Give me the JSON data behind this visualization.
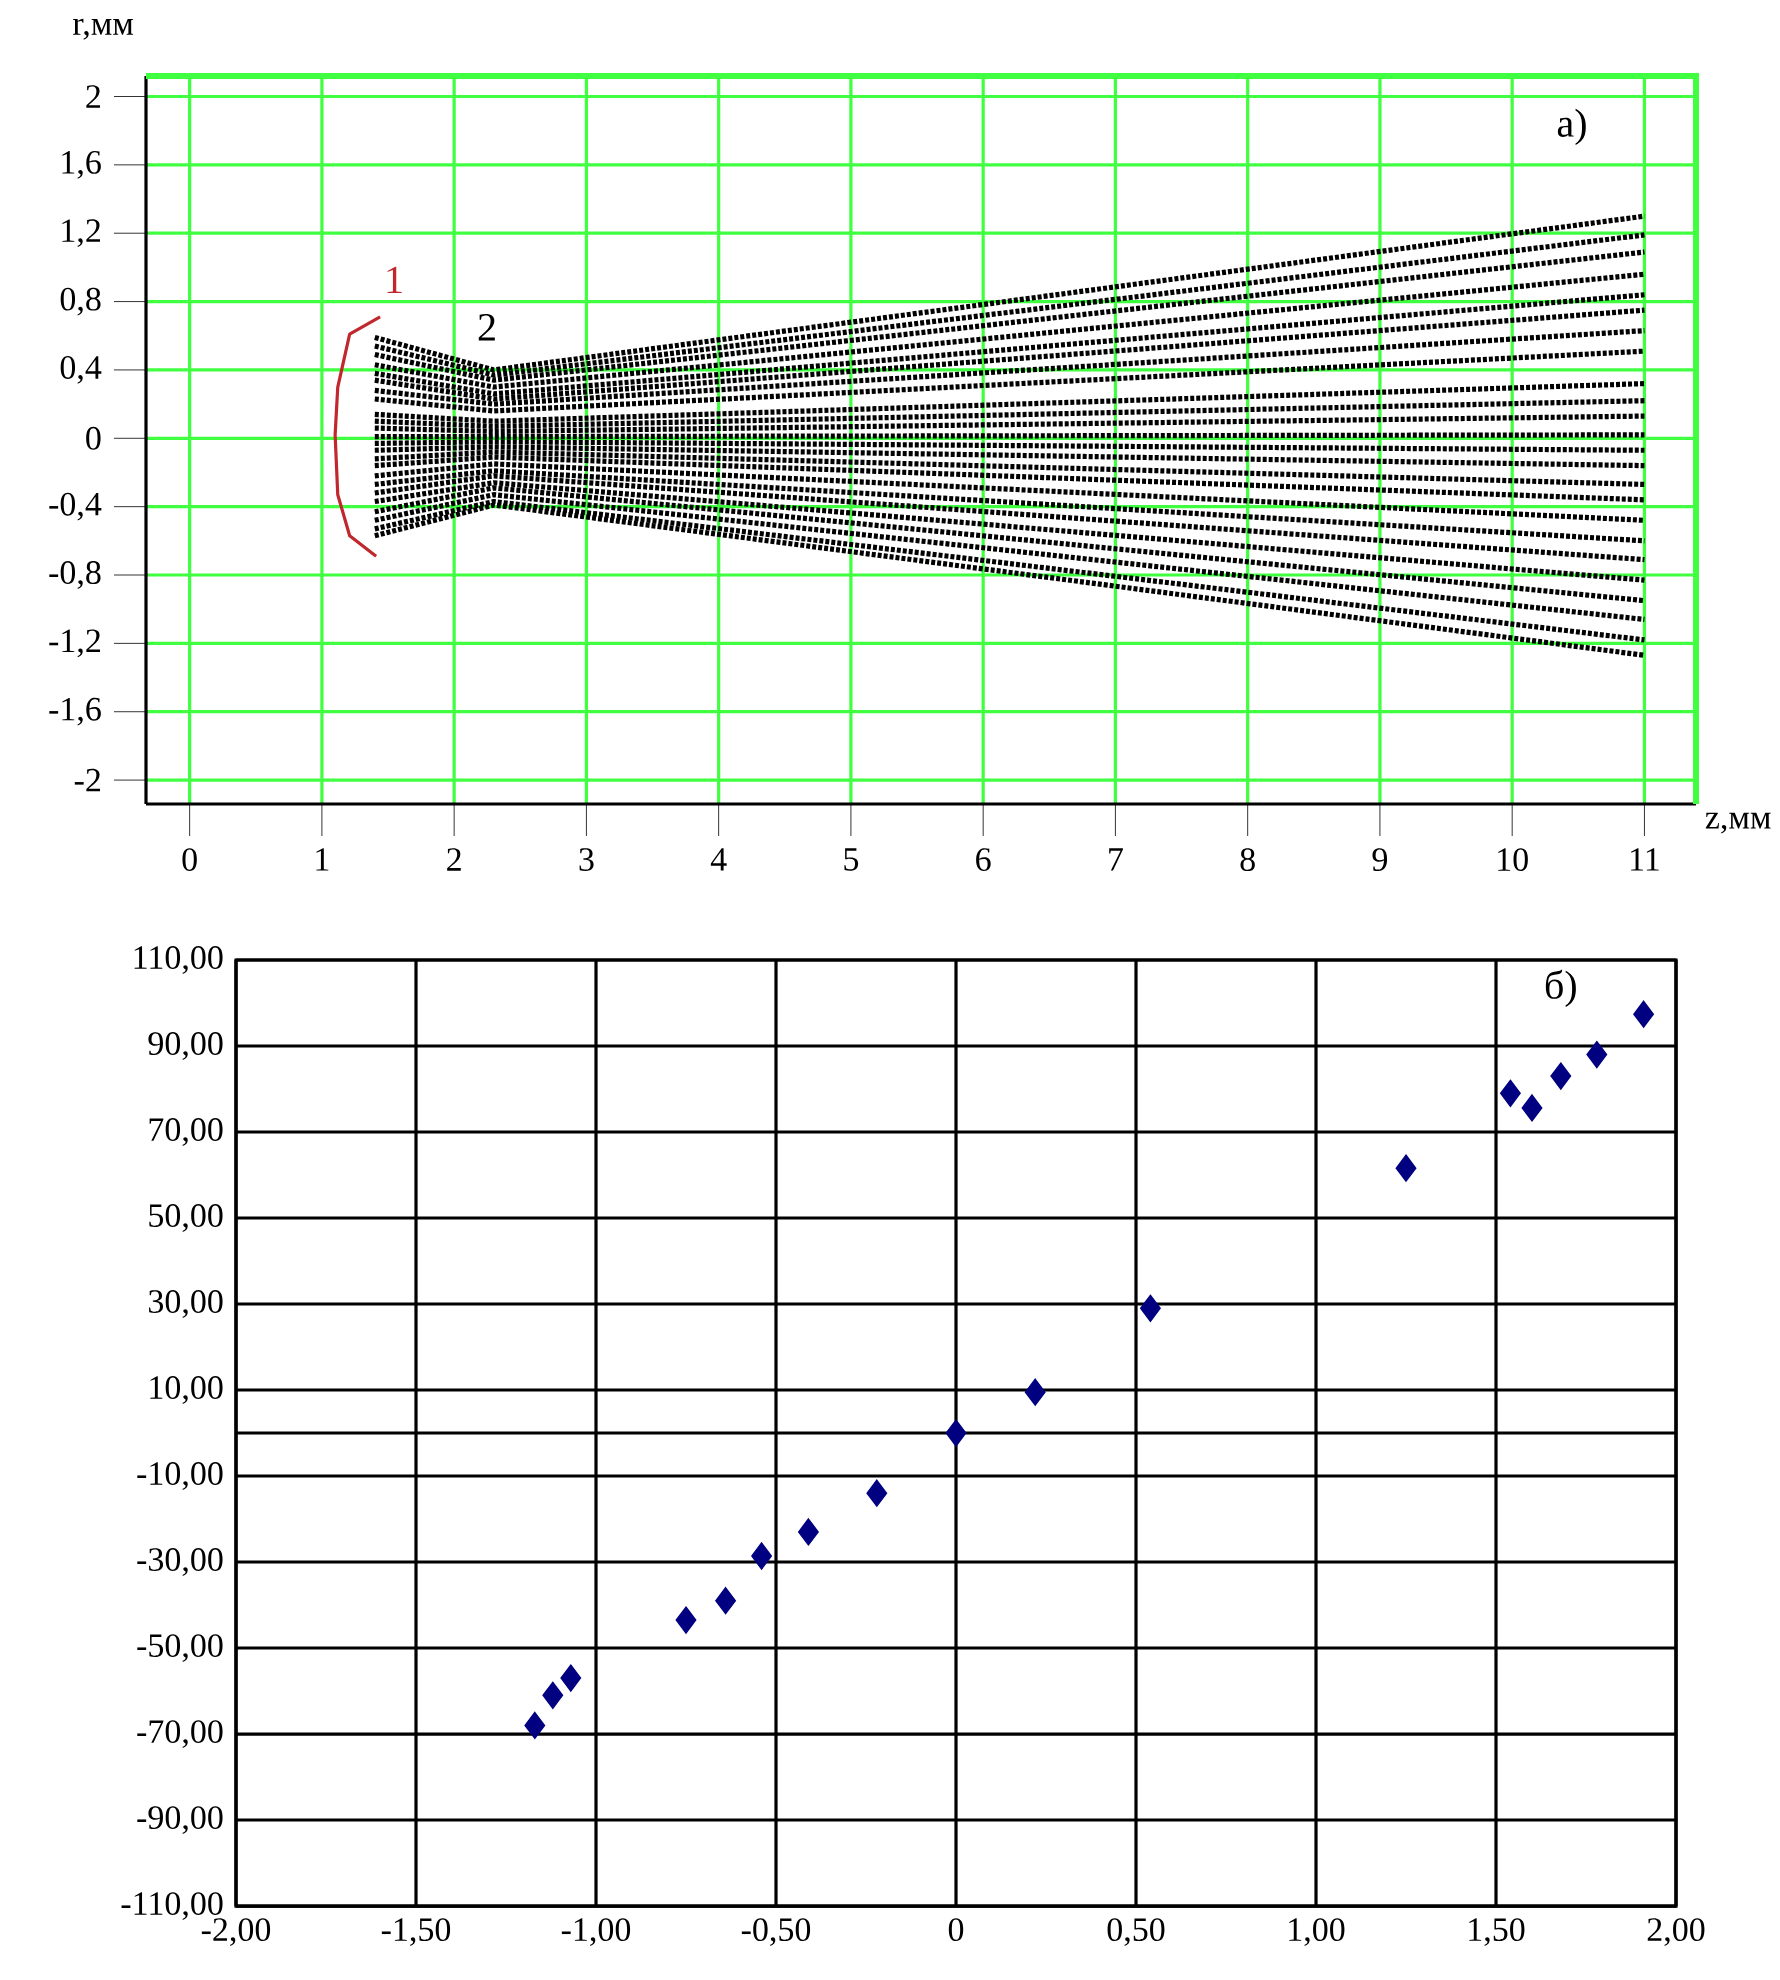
{
  "chart_data": [
    {
      "type": "line",
      "xlabel": "z,мм",
      "ylabel": "r,мм",
      "xlim": [
        -0.33,
        11.39
      ],
      "ylim": [
        -2.14,
        2.12
      ],
      "xticks": [
        0,
        1,
        2,
        3,
        4,
        5,
        6,
        7,
        8,
        9,
        10,
        11
      ],
      "yticks": [
        2,
        {
          "value": 1.6,
          "label": "1,6"
        },
        {
          "value": 1.2,
          "label": "1,2"
        },
        {
          "value": 0.8,
          "label": "0,8"
        },
        {
          "value": 0.4,
          "label": "0,4"
        },
        0,
        {
          "value": -0.4,
          "label": "-0,4"
        },
        {
          "value": -0.8,
          "label": "-0,8"
        },
        {
          "value": -1.2,
          "label": "-1,2"
        },
        {
          "value": -1.6,
          "label": "-1,6"
        },
        -2
      ],
      "grid": true,
      "line_style": "dotted",
      "x": [
        1.4,
        2.3,
        11
      ],
      "annotations": [
        "1",
        "2",
        "a)"
      ],
      "series": [
        {
          "color": "#c0282d",
          "line_style": "solid",
          "x": [
            1.44,
            1.21,
            1.12,
            1.1,
            1.12,
            1.21,
            1.41
          ],
          "values": [
            0.71,
            0.61,
            0.3,
            0.02,
            -0.33,
            -0.57,
            -0.69
          ]
        },
        {
          "color": "#000000",
          "values": [
            0.59,
            0.4,
            1.3
          ]
        },
        {
          "color": "#000000",
          "values": [
            0.54,
            0.37,
            1.19
          ]
        },
        {
          "color": "#000000",
          "values": [
            0.49,
            0.34,
            1.09
          ]
        },
        {
          "color": "#000000",
          "values": [
            0.43,
            0.3,
            0.96
          ]
        },
        {
          "color": "#000000",
          "values": [
            0.38,
            0.26,
            0.84
          ]
        },
        {
          "color": "#000000",
          "values": [
            0.34,
            0.23,
            0.75
          ]
        },
        {
          "color": "#000000",
          "values": [
            0.28,
            0.2,
            0.63
          ]
        },
        {
          "color": "#000000",
          "values": [
            0.23,
            0.16,
            0.51
          ]
        },
        {
          "color": "#000000",
          "values": [
            0.14,
            0.1,
            0.32
          ]
        },
        {
          "color": "#000000",
          "values": [
            0.1,
            0.07,
            0.22
          ]
        },
        {
          "color": "#000000",
          "values": [
            0.06,
            0.04,
            0.13
          ]
        },
        {
          "color": "#000000",
          "values": [
            0.01,
            0.01,
            0.02
          ]
        },
        {
          "color": "#000000",
          "values": [
            -0.03,
            -0.02,
            -0.07
          ]
        },
        {
          "color": "#000000",
          "values": [
            -0.07,
            -0.05,
            -0.16
          ]
        },
        {
          "color": "#000000",
          "values": [
            -0.12,
            -0.08,
            -0.27
          ]
        },
        {
          "color": "#000000",
          "values": [
            -0.16,
            -0.11,
            -0.36
          ]
        },
        {
          "color": "#000000",
          "values": [
            -0.22,
            -0.15,
            -0.48
          ]
        },
        {
          "color": "#000000",
          "values": [
            -0.27,
            -0.19,
            -0.6
          ]
        },
        {
          "color": "#000000",
          "values": [
            -0.32,
            -0.22,
            -0.71
          ]
        },
        {
          "color": "#000000",
          "values": [
            -0.37,
            -0.26,
            -0.83
          ]
        },
        {
          "color": "#000000",
          "values": [
            -0.43,
            -0.29,
            -0.95
          ]
        },
        {
          "color": "#000000",
          "values": [
            -0.48,
            -0.33,
            -1.06
          ]
        },
        {
          "color": "#000000",
          "values": [
            -0.53,
            -0.37,
            -1.18
          ]
        },
        {
          "color": "#000000",
          "values": [
            -0.57,
            -0.39,
            -1.27
          ]
        }
      ]
    },
    {
      "type": "scatter",
      "marker": "diamond",
      "grid": true,
      "xlim": [
        -2,
        2
      ],
      "ylim": [
        -110,
        110
      ],
      "xticks": [
        {
          "value": -2,
          "label": "-2,00"
        },
        {
          "value": -1.5,
          "label": "-1,50"
        },
        {
          "value": -1,
          "label": "-1,00"
        },
        {
          "value": -0.5,
          "label": "-0,50"
        },
        0,
        {
          "value": 0.5,
          "label": "0,50"
        },
        {
          "value": 1,
          "label": "1,00"
        },
        {
          "value": 1.5,
          "label": "1,50"
        },
        {
          "value": 2,
          "label": "2,00"
        }
      ],
      "yticks": [
        {
          "value": 110,
          "label": "110,00"
        },
        {
          "value": 90,
          "label": "90,00"
        },
        {
          "value": 70,
          "label": "70,00"
        },
        {
          "value": 50,
          "label": "50,00"
        },
        {
          "value": 30,
          "label": "30,00"
        },
        {
          "value": 10,
          "label": "10,00"
        },
        {
          "value": 0,
          "label": null
        },
        {
          "value": -10,
          "label": "-10,00"
        },
        {
          "value": -30,
          "label": "-30,00"
        },
        {
          "value": -50,
          "label": "-50,00"
        },
        {
          "value": -70,
          "label": "-70,00"
        },
        {
          "value": -90,
          "label": "-90,00"
        },
        {
          "value": -110,
          "label": "-110,00"
        }
      ],
      "annotations": [
        "б)"
      ],
      "x": [
        -1.17,
        -1.12,
        -1.07,
        -0.75,
        -0.64,
        -0.54,
        -0.41,
        -0.22,
        0,
        0.22,
        0.54,
        1.25,
        1.54,
        1.6,
        1.68,
        1.78,
        1.91
      ],
      "series": [
        {
          "color": "#000080",
          "values": [
            -68,
            -61,
            -57,
            -43.5,
            -39,
            -28.6,
            -23,
            -14,
            0,
            9.5,
            29,
            61.6,
            79,
            75.6,
            83,
            88,
            97.4
          ]
        }
      ]
    }
  ]
}
